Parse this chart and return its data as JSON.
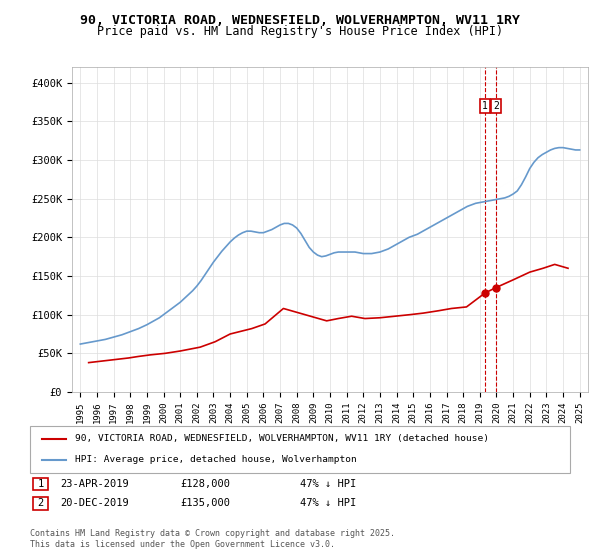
{
  "title_line1": "90, VICTORIA ROAD, WEDNESFIELD, WOLVERHAMPTON, WV11 1RY",
  "title_line2": "Price paid vs. HM Land Registry's House Price Index (HPI)",
  "hpi_color": "#6699cc",
  "property_color": "#cc0000",
  "vline_color": "#cc0000",
  "vline_style": "--",
  "annotation_box_color": "#cc0000",
  "background_color": "#ffffff",
  "grid_color": "#dddddd",
  "ylabel_values": [
    "£0",
    "£50K",
    "£100K",
    "£150K",
    "£200K",
    "£250K",
    "£300K",
    "£350K",
    "£400K"
  ],
  "ylim": [
    0,
    420000
  ],
  "xlim_start": 1994.5,
  "xlim_end": 2025.5,
  "xtick_years": [
    1995,
    1996,
    1997,
    1998,
    1999,
    2000,
    2001,
    2002,
    2003,
    2004,
    2005,
    2006,
    2007,
    2008,
    2009,
    2010,
    2011,
    2012,
    2013,
    2014,
    2015,
    2016,
    2017,
    2018,
    2019,
    2020,
    2021,
    2022,
    2023,
    2024,
    2025
  ],
  "sale1_x": 2019.31,
  "sale1_y": 128000,
  "sale1_label": "1",
  "sale2_x": 2019.97,
  "sale2_y": 135000,
  "sale2_label": "2",
  "legend_property": "90, VICTORIA ROAD, WEDNESFIELD, WOLVERHAMPTON, WV11 1RY (detached house)",
  "legend_hpi": "HPI: Average price, detached house, Wolverhampton",
  "table_row1": "1    23-APR-2019         £128,000        47% ↓ HPI",
  "table_row2": "2    20-DEC-2019         £135,000        47% ↓ HPI",
  "footer": "Contains HM Land Registry data © Crown copyright and database right 2025.\nThis data is licensed under the Open Government Licence v3.0.",
  "hpi_years": [
    1995,
    1995.25,
    1995.5,
    1995.75,
    1996,
    1996.25,
    1996.5,
    1996.75,
    1997,
    1997.25,
    1997.5,
    1997.75,
    1998,
    1998.25,
    1998.5,
    1998.75,
    1999,
    1999.25,
    1999.5,
    1999.75,
    2000,
    2000.25,
    2000.5,
    2000.75,
    2001,
    2001.25,
    2001.5,
    2001.75,
    2002,
    2002.25,
    2002.5,
    2002.75,
    2003,
    2003.25,
    2003.5,
    2003.75,
    2004,
    2004.25,
    2004.5,
    2004.75,
    2005,
    2005.25,
    2005.5,
    2005.75,
    2006,
    2006.25,
    2006.5,
    2006.75,
    2007,
    2007.25,
    2007.5,
    2007.75,
    2008,
    2008.25,
    2008.5,
    2008.75,
    2009,
    2009.25,
    2009.5,
    2009.75,
    2010,
    2010.25,
    2010.5,
    2010.75,
    2011,
    2011.25,
    2011.5,
    2011.75,
    2012,
    2012.25,
    2012.5,
    2012.75,
    2013,
    2013.25,
    2013.5,
    2013.75,
    2014,
    2014.25,
    2014.5,
    2014.75,
    2015,
    2015.25,
    2015.5,
    2015.75,
    2016,
    2016.25,
    2016.5,
    2016.75,
    2017,
    2017.25,
    2017.5,
    2017.75,
    2018,
    2018.25,
    2018.5,
    2018.75,
    2019,
    2019.25,
    2019.5,
    2019.75,
    2020,
    2020.25,
    2020.5,
    2020.75,
    2021,
    2021.25,
    2021.5,
    2021.75,
    2022,
    2022.25,
    2022.5,
    2022.75,
    2023,
    2023.25,
    2023.5,
    2023.75,
    2024,
    2024.25,
    2024.5,
    2024.75,
    2025
  ],
  "hpi_values": [
    62000,
    63000,
    64000,
    65000,
    66000,
    67000,
    68000,
    69500,
    71000,
    72500,
    74000,
    76000,
    78000,
    80000,
    82000,
    84500,
    87000,
    90000,
    93000,
    96000,
    100000,
    104000,
    108000,
    112000,
    116000,
    121000,
    126000,
    131000,
    137000,
    144000,
    152000,
    160000,
    168000,
    175000,
    182000,
    188000,
    194000,
    199000,
    203000,
    206000,
    208000,
    208000,
    207000,
    206000,
    206000,
    208000,
    210000,
    213000,
    216000,
    218000,
    218000,
    216000,
    212000,
    205000,
    196000,
    187000,
    181000,
    177000,
    175000,
    176000,
    178000,
    180000,
    181000,
    181000,
    181000,
    181000,
    181000,
    180000,
    179000,
    179000,
    179000,
    180000,
    181000,
    183000,
    185000,
    188000,
    191000,
    194000,
    197000,
    200000,
    202000,
    204000,
    207000,
    210000,
    213000,
    216000,
    219000,
    222000,
    225000,
    228000,
    231000,
    234000,
    237000,
    240000,
    242000,
    244000,
    245000,
    246000,
    247000,
    248000,
    249000,
    250000,
    251000,
    253000,
    256000,
    260000,
    268000,
    278000,
    289000,
    297000,
    303000,
    307000,
    310000,
    313000,
    315000,
    316000,
    316000,
    315000,
    314000,
    313000,
    313000
  ],
  "property_years": [
    1995.5,
    1996.3,
    1997.1,
    1997.9,
    1998.5,
    1999.2,
    2000.1,
    2001.0,
    2002.2,
    2003.1,
    2004.0,
    2005.3,
    2006.1,
    2007.2,
    2008.5,
    2009.8,
    2010.5,
    2011.3,
    2012.1,
    2013.0,
    2013.9,
    2014.8,
    2015.6,
    2016.5,
    2017.3,
    2018.2,
    2019.31,
    2019.97,
    2021.0,
    2022.0,
    2022.8,
    2023.5,
    2024.3
  ],
  "property_values": [
    38000,
    40000,
    42000,
    44000,
    46000,
    48000,
    50000,
    53000,
    58000,
    65000,
    75000,
    82000,
    88000,
    108000,
    100000,
    92000,
    95000,
    98000,
    95000,
    96000,
    98000,
    100000,
    102000,
    105000,
    108000,
    110000,
    128000,
    135000,
    145000,
    155000,
    160000,
    165000,
    160000
  ]
}
